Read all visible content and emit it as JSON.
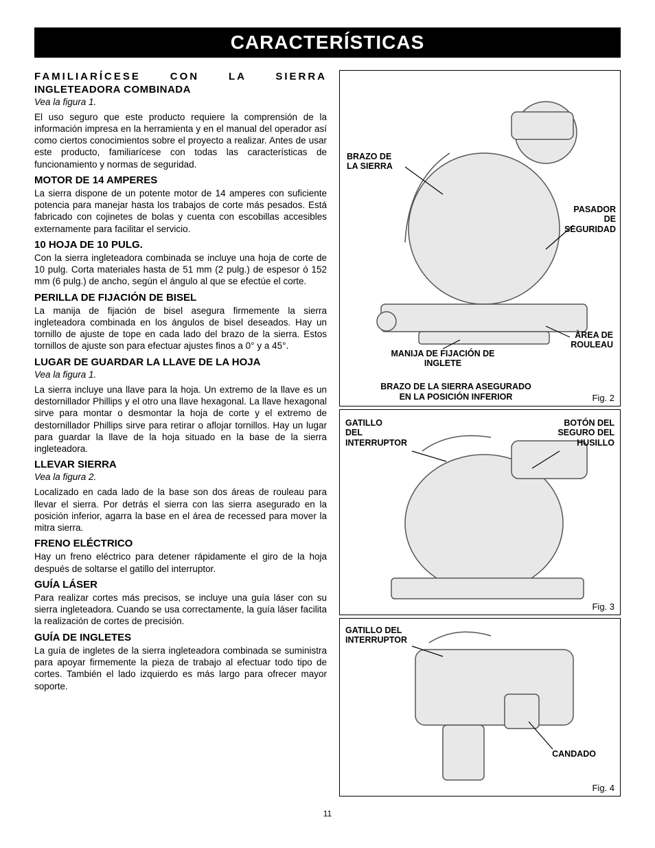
{
  "banner": "CARACTERÍSTICAS",
  "page_number": "11",
  "left": {
    "main_heading_l1": "FAMILIARÍCESE CON LA SIERRA",
    "main_heading_l2": "INGLETEADORA COMBINADA",
    "caption1": "Vea la figura 1.",
    "intro": "El uso seguro que este producto requiere la comprensión de la información impresa en la herramienta y en el manual del operador así como ciertos conocimientos sobre el proyecto a realizar. Antes de usar este producto, familiarícese con todas las características de funcionamiento y normas de seguridad.",
    "h_motor": "MOTOR DE 14 AMPERES",
    "p_motor": "La sierra dispone de un potente motor de 14 amperes con suficiente potencia para manejar hasta los trabajos de corte más pesados. Está fabricado con cojinetes de bolas y cuenta con escobillas accesibles externamente para facilitar el servicio.",
    "h_blade": "10 HOJA DE 10 PULG.",
    "p_blade": "Con la sierra ingleteadora combinada se incluye una hoja de corte de 10 pulg. Corta materiales hasta de 51 mm (2 pulg.) de espesor ó 152 mm (6 pulg.) de ancho, según el ángulo al que se efectúe el corte.",
    "h_bevel": "PERILLA DE FIJACIÓN DE BISEL",
    "p_bevel": "La manija de fijación de bisel asegura firmemente la sierra ingleteadora combinada en los ángulos de bisel deseados. Hay un tornillo de ajuste de tope en cada lado del brazo de la sierra. Estos tornillos de ajuste son para efectuar ajustes finos a 0° y a 45°.",
    "h_wrench": "LUGAR DE GUARDAR LA LLAVE DE LA HOJA",
    "caption_wrench": "Vea la figura 1.",
    "p_wrench": "La sierra incluye una llave para la hoja. Un extremo de la llave es un destornillador Phillips y el otro una llave hexagonal. La llave hexagonal sirve para montar o desmontar la hoja de corte y el extremo de destornillador Phillips sirve para retirar o aflojar tornillos. Hay un lugar para guardar la llave de la hoja situado en la base de la sierra ingleteadora.",
    "h_carry": "LLEVAR SIERRA",
    "caption_carry": "Vea la figura 2.",
    "p_carry": "Localizado en cada lado de la base son dos áreas de rouleau para llevar el sierra. Por detrás el sierra con las sierra asegurado en la posición inferior, agarra la base en el área de recessed para mover la mitra sierra.",
    "h_brake": "FRENO ELÉCTRICO",
    "p_brake": "Hay un freno eléctrico para detener rápidamente el giro de la hoja después de soltarse el gatillo del interruptor.",
    "h_laser": "GUÍA LÁSER",
    "p_laser": "Para realizar cortes más precisos, se incluye una guía láser con su sierra ingleteadora. Cuando se usa correctamente, la guía láser facilita la realización de cortes de precisión.",
    "h_miter": "GUÍA DE INGLETES",
    "p_miter": "La guía de ingletes de la sierra ingleteadora combinada se suministra para apoyar firmemente la pieza de trabajo al efectuar todo tipo de cortes. También el lado izquierdo es más largo para ofrecer mayor soporte."
  },
  "fig2": {
    "label": "Fig. 2",
    "brazo": "BRAZO DE\nLA SIERRA",
    "pasador": "PASADOR\nDE\nSEGURIDAD",
    "area": "ÀREA DE\nROULEAU",
    "manija": "MANIJA DE FIJACIÓN DE\nINGLETE",
    "caption": "BRAZO DE LA SIERRA ASEGURADO\nEN LA POSICIÓN INFERIOR"
  },
  "fig3": {
    "label": "Fig. 3",
    "gatillo": "GATILLO\nDEL\nINTERRUPTOR",
    "boton": "BOTÓN DEL\nSEGURO DEL\nHUSILLO"
  },
  "fig4": {
    "label": "Fig. 4",
    "gatillo": "GATILLO DEL\nINTERRUPTOR",
    "candado": "CANDADO"
  }
}
